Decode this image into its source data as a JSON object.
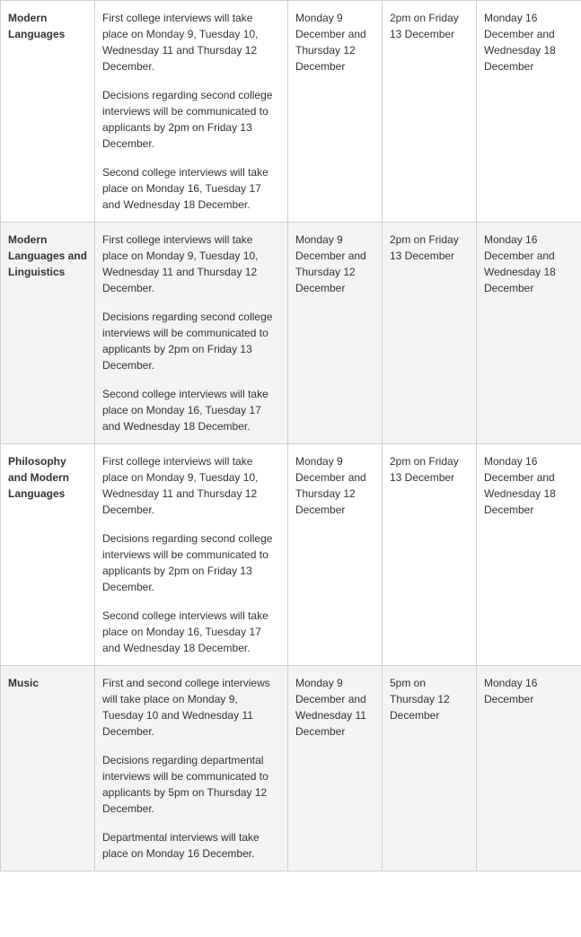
{
  "table": {
    "rows": [
      {
        "alt": false,
        "subject": "Modern Languages",
        "details": [
          "First college interviews will take place on Monday 9, Tuesday 10, Wednesday 11 and Thursday 12 December.",
          "Decisions regarding second college interviews will be communicated to applicants by 2pm on Friday 13 December.",
          "Second college interviews will take place on Monday 16, Tuesday 17 and Wednesday 18 December."
        ],
        "col3": "Monday 9 December and Thursday 12 December",
        "col4": "2pm on Friday 13 December",
        "col5": "Monday 16 December and Wednesday 18 December"
      },
      {
        "alt": true,
        "subject": "Modern Languages and Linguistics",
        "details": [
          "First college interviews will take place on Monday 9, Tuesday 10, Wednesday 11 and Thursday 12 December.",
          "Decisions regarding second college interviews will be communicated to applicants by 2pm on Friday 13 December.",
          "Second college interviews will take place on Monday 16, Tuesday 17 and Wednesday 18 December."
        ],
        "col3": "Monday 9 December and Thursday 12 December",
        "col4": "2pm on Friday 13 December",
        "col5": "Monday 16 December and Wednesday 18 December"
      },
      {
        "alt": false,
        "subject": "Philosophy and Modern Languages",
        "details": [
          "First college interviews will take place on Monday 9, Tuesday 10, Wednesday 11 and Thursday 12 December.",
          "Decisions regarding second college interviews will be communicated to applicants by 2pm on Friday 13 December.",
          "Second college interviews will take place on Monday 16, Tuesday 17 and Wednesday 18 December."
        ],
        "col3": "Monday 9 December and Thursday 12 December",
        "col4": "2pm on Friday 13 December",
        "col5": "Monday 16 December and Wednesday 18 December"
      },
      {
        "alt": true,
        "subject": "Music",
        "details": [
          "First and second college interviews will take place on Monday 9, Tuesday 10 and Wednesday 11 December.",
          "Decisions regarding departmental interviews will be communicated to applicants by 5pm on Thursday 12 December.",
          "Departmental interviews will take place on Monday 16 December."
        ],
        "col3": "Monday 9 December and Wednesday 11 December",
        "col4": "5pm on Thursday 12 December",
        "col5": "Monday 16 December"
      }
    ]
  }
}
